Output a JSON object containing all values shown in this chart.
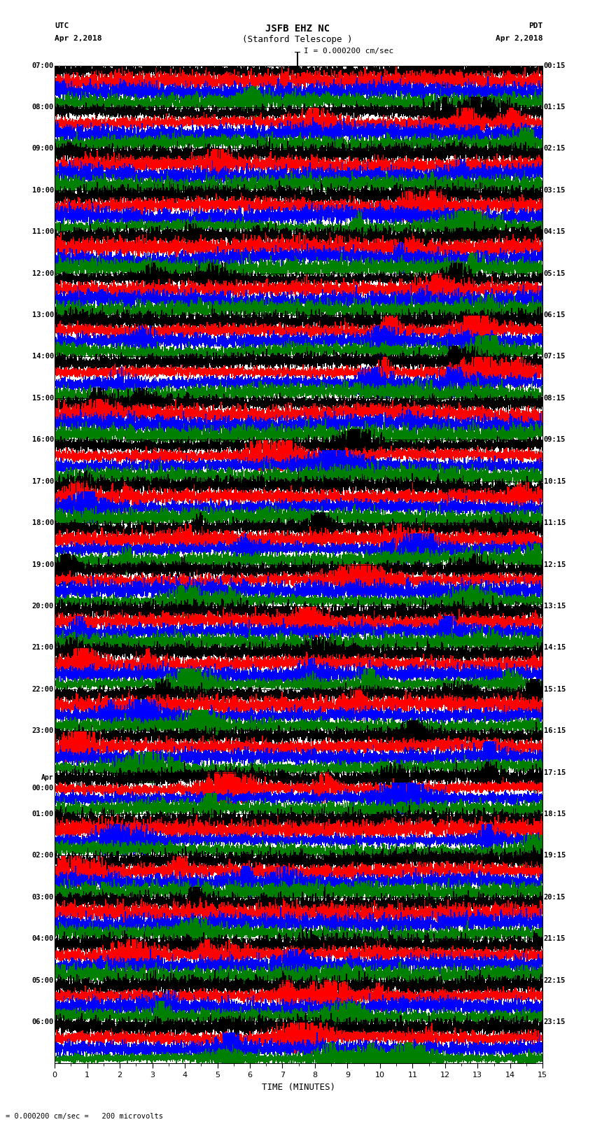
{
  "title_line1": "JSFB EHZ NC",
  "title_line2": "(Stanford Telescope )",
  "scale_label": "I = 0.000200 cm/sec",
  "utc_label": "UTC",
  "pdt_label": "PDT",
  "date_left": "Apr 2,2018",
  "date_right": "Apr 2,2018",
  "xlabel": "TIME (MINUTES)",
  "bottom_note": "= 0.000200 cm/sec =   200 microvolts",
  "left_times": [
    "07:00",
    "08:00",
    "09:00",
    "10:00",
    "11:00",
    "12:00",
    "13:00",
    "14:00",
    "15:00",
    "16:00",
    "17:00",
    "18:00",
    "19:00",
    "20:00",
    "21:00",
    "22:00",
    "23:00",
    "Apr\n00:00",
    "01:00",
    "02:00",
    "03:00",
    "04:00",
    "05:00",
    "06:00"
  ],
  "right_times": [
    "00:15",
    "01:15",
    "02:15",
    "03:15",
    "04:15",
    "05:15",
    "06:15",
    "07:15",
    "08:15",
    "09:15",
    "10:15",
    "11:15",
    "12:15",
    "13:15",
    "14:15",
    "15:15",
    "16:15",
    "17:15",
    "18:15",
    "19:15",
    "20:15",
    "21:15",
    "22:15",
    "23:15"
  ],
  "num_rows": 24,
  "traces_per_row": 4,
  "colors": [
    "black",
    "red",
    "blue",
    "green"
  ],
  "bg_color": "white",
  "minutes": 15,
  "seed": 42,
  "grid_color": "#888888",
  "grid_interval_minutes": 1
}
